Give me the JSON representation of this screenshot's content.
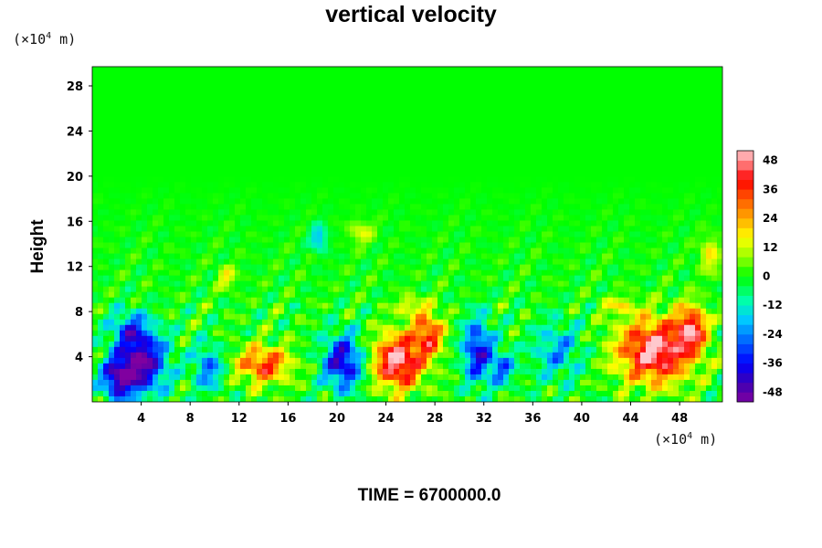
{
  "chart_data": {
    "type": "heatmap",
    "title": "vertical velocity",
    "ylabel": "Height",
    "xlabel": "",
    "y_unit": {
      "prefix": "(×10",
      "exp": "4",
      "suffix": " m)"
    },
    "x_unit": {
      "prefix": "(×10",
      "exp": "4",
      "suffix": " m)"
    },
    "x_ticks": [
      4,
      8,
      12,
      16,
      20,
      24,
      28,
      32,
      36,
      40,
      44,
      48
    ],
    "y_ticks": [
      4,
      8,
      12,
      16,
      20,
      24,
      28
    ],
    "xlim": [
      0,
      51.5
    ],
    "ylim": [
      0,
      29.7
    ],
    "colorbar": {
      "ticks": [
        48,
        36,
        24,
        12,
        0,
        -12,
        -24,
        -36,
        -48
      ],
      "range": [
        -52,
        52
      ]
    },
    "features": [
      {
        "x": 4.0,
        "y": 3.5,
        "value": -50,
        "sx": 2.0,
        "sy": 2.8
      },
      {
        "x": 2.0,
        "y": 2.0,
        "value": -38,
        "sx": 1.3,
        "sy": 1.8
      },
      {
        "x": 3.0,
        "y": 6.5,
        "value": -22,
        "sx": 1.5,
        "sy": 1.5
      },
      {
        "x": 9.5,
        "y": 3.0,
        "value": -26,
        "sx": 1.2,
        "sy": 2.0
      },
      {
        "x": 14.0,
        "y": 3.3,
        "value": 36,
        "sx": 2.2,
        "sy": 1.6
      },
      {
        "x": 20.5,
        "y": 3.5,
        "value": -42,
        "sx": 1.6,
        "sy": 2.4
      },
      {
        "x": 25.0,
        "y": 3.6,
        "value": 52,
        "sx": 2.0,
        "sy": 2.4
      },
      {
        "x": 27.5,
        "y": 6.0,
        "value": 36,
        "sx": 1.2,
        "sy": 2.0
      },
      {
        "x": 31.5,
        "y": 4.5,
        "value": -38,
        "sx": 1.2,
        "sy": 2.8
      },
      {
        "x": 33.5,
        "y": 3.0,
        "value": -26,
        "sx": 1.0,
        "sy": 1.5
      },
      {
        "x": 38.0,
        "y": 4.5,
        "value": -20,
        "sx": 2.0,
        "sy": 2.5
      },
      {
        "x": 46.0,
        "y": 4.5,
        "value": 52,
        "sx": 3.0,
        "sy": 2.8
      },
      {
        "x": 49.0,
        "y": 6.5,
        "value": 40,
        "sx": 1.2,
        "sy": 2.0
      },
      {
        "x": 11.0,
        "y": 11.0,
        "value": 16,
        "sx": 0.8,
        "sy": 1.0
      },
      {
        "x": 18.5,
        "y": 14.5,
        "value": -20,
        "sx": 0.7,
        "sy": 1.2
      },
      {
        "x": 22.0,
        "y": 15.0,
        "value": 14,
        "sx": 1.0,
        "sy": 1.0
      },
      {
        "x": 26.0,
        "y": 8.5,
        "value": 18,
        "sx": 1.0,
        "sy": 0.8
      },
      {
        "x": 50.5,
        "y": 13.0,
        "value": 18,
        "sx": 0.8,
        "sy": 1.5
      },
      {
        "x": 43.0,
        "y": 8.5,
        "value": 14,
        "sx": 1.5,
        "sy": 0.8
      }
    ]
  },
  "footer": {
    "time_label": "TIME = 6700000.0"
  },
  "colors": {
    "background": "#ffffff",
    "axis": "#000000"
  }
}
